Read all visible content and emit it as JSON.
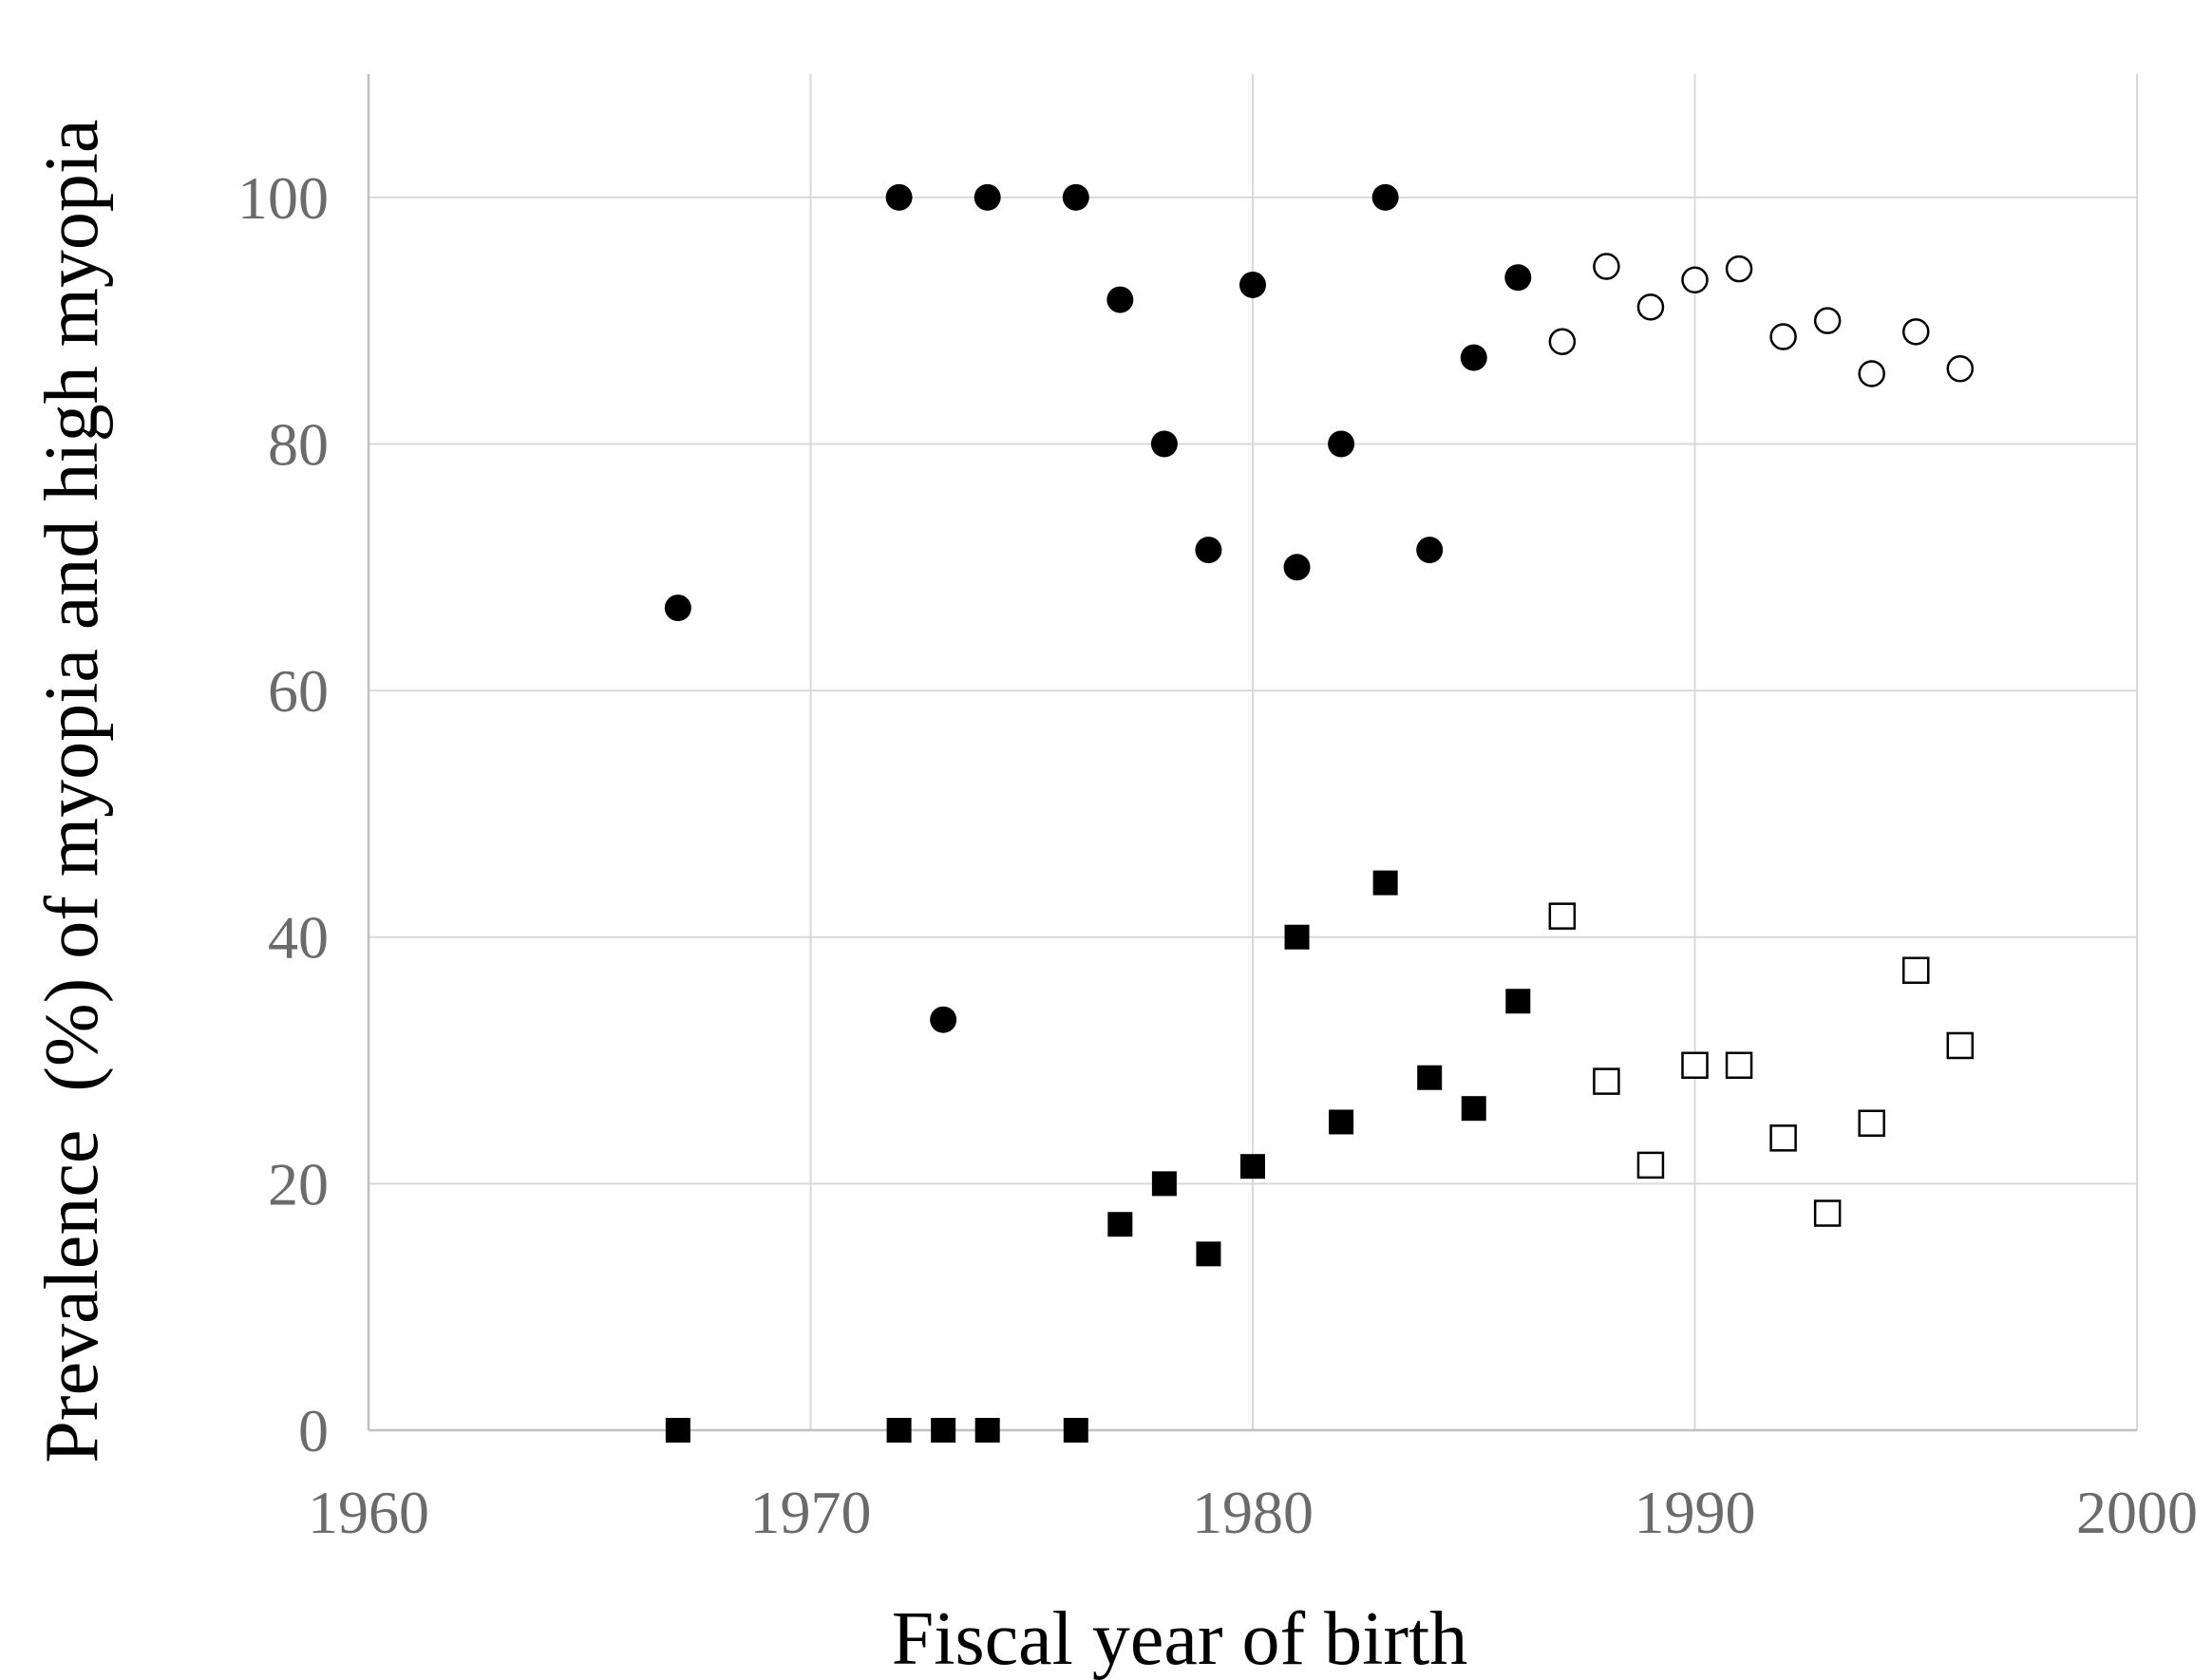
{
  "chart_data": {
    "type": "scatter",
    "title": "",
    "xlabel": "Fiscal year of birth",
    "ylabel": "Prevalence  (%) of myopia and high myopia",
    "xlim": [
      1960,
      2000
    ],
    "ylim": [
      0,
      110
    ],
    "x_ticks": [
      "1960",
      "1970",
      "1980",
      "1990",
      "2000"
    ],
    "y_ticks": [
      "0",
      "20",
      "40",
      "60",
      "80",
      "100"
    ],
    "grid": true,
    "legend": "none",
    "series": [
      {
        "marker": "filled-circle",
        "color": "#000000",
        "points": [
          [
            1967,
            66.7
          ],
          [
            1972,
            100
          ],
          [
            1973,
            33.3
          ],
          [
            1974,
            100
          ],
          [
            1976,
            100
          ],
          [
            1977,
            91.7
          ],
          [
            1978,
            80
          ],
          [
            1979,
            71.4
          ],
          [
            1980,
            92.9
          ],
          [
            1981,
            70
          ],
          [
            1982,
            80
          ],
          [
            1983,
            100
          ],
          [
            1984,
            71.4
          ],
          [
            1985,
            87
          ],
          [
            1986,
            93.5
          ]
        ]
      },
      {
        "marker": "open-circle",
        "color": "#000000",
        "points": [
          [
            1987,
            88.3
          ],
          [
            1988,
            94.4
          ],
          [
            1989,
            91.1
          ],
          [
            1990,
            93.3
          ],
          [
            1991,
            94.2
          ],
          [
            1992,
            88.7
          ],
          [
            1993,
            90.0
          ],
          [
            1994,
            85.7
          ],
          [
            1995,
            89.1
          ],
          [
            1996,
            86.1
          ]
        ]
      },
      {
        "marker": "filled-square",
        "color": "#000000",
        "points": [
          [
            1967,
            0
          ],
          [
            1972,
            0
          ],
          [
            1973,
            0
          ],
          [
            1974,
            0
          ],
          [
            1976,
            0
          ],
          [
            1977,
            16.7
          ],
          [
            1978,
            20
          ],
          [
            1979,
            14.3
          ],
          [
            1980,
            21.4
          ],
          [
            1981,
            40
          ],
          [
            1982,
            25
          ],
          [
            1983,
            44.4
          ],
          [
            1984,
            28.6
          ],
          [
            1985,
            26.1
          ],
          [
            1986,
            34.8
          ]
        ]
      },
      {
        "marker": "open-square",
        "color": "#000000",
        "points": [
          [
            1987,
            41.7
          ],
          [
            1988,
            28.3
          ],
          [
            1989,
            21.5
          ],
          [
            1990,
            29.6
          ],
          [
            1991,
            29.6
          ],
          [
            1992,
            23.7
          ],
          [
            1993,
            17.6
          ],
          [
            1994,
            24.9
          ],
          [
            1995,
            37.3
          ],
          [
            1996,
            31.2
          ]
        ]
      }
    ]
  }
}
